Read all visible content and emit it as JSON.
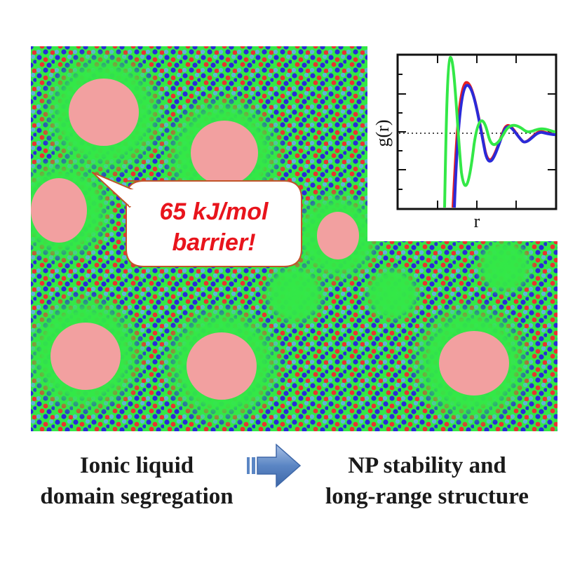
{
  "callout": {
    "line1": "65 kJ/mol",
    "line2": "barrier!"
  },
  "caption": {
    "left_line1": "Ionic liquid",
    "left_line2": "domain segregation",
    "right_line1": "NP stability and",
    "right_line2": "long-range structure"
  },
  "inset": {
    "ylabel": "g(r)",
    "xlabel": "r"
  },
  "colors": {
    "green": "#33e847",
    "blue": "#2a2ad8",
    "red": "#e83232",
    "lightblue": "#5fb4d8",
    "pink": "#f2a0a0",
    "arrow": "#5b86c4"
  }
}
